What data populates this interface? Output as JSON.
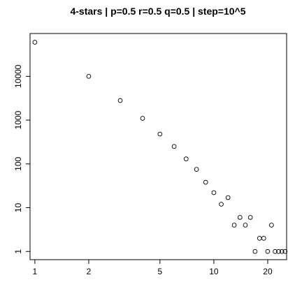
{
  "chart_data": {
    "type": "scatter",
    "title": "4-stars | p=0.5 r=0.5 q=0.5 | step=10^5",
    "xlabel": "",
    "ylabel": "",
    "x_scale": "log",
    "y_scale": "log",
    "xlim": [
      0.94,
      25.5
    ],
    "ylim": [
      0.65,
      95000
    ],
    "x_ticks": [
      1,
      2,
      5,
      10,
      20
    ],
    "x_tick_labels": [
      "1",
      "2",
      "5",
      "10",
      "20"
    ],
    "y_ticks": [
      1,
      10,
      100,
      1000,
      10000
    ],
    "y_tick_labels": [
      "1",
      "10",
      "100",
      "1000",
      "10000"
    ],
    "grid": false,
    "points": [
      {
        "x": 1,
        "y": 60000
      },
      {
        "x": 2,
        "y": 10000
      },
      {
        "x": 3,
        "y": 2800
      },
      {
        "x": 4,
        "y": 1100
      },
      {
        "x": 5,
        "y": 480
      },
      {
        "x": 6,
        "y": 250
      },
      {
        "x": 7,
        "y": 130
      },
      {
        "x": 8,
        "y": 75
      },
      {
        "x": 9,
        "y": 38
      },
      {
        "x": 10,
        "y": 22
      },
      {
        "x": 11,
        "y": 12
      },
      {
        "x": 12,
        "y": 17
      },
      {
        "x": 13,
        "y": 4
      },
      {
        "x": 14,
        "y": 6
      },
      {
        "x": 15,
        "y": 4
      },
      {
        "x": 16,
        "y": 6
      },
      {
        "x": 17,
        "y": 1
      },
      {
        "x": 18,
        "y": 2
      },
      {
        "x": 19,
        "y": 2
      },
      {
        "x": 20,
        "y": 1
      },
      {
        "x": 21,
        "y": 4
      },
      {
        "x": 22,
        "y": 1
      },
      {
        "x": 23,
        "y": 1
      },
      {
        "x": 24,
        "y": 1
      },
      {
        "x": 25,
        "y": 1
      }
    ]
  }
}
